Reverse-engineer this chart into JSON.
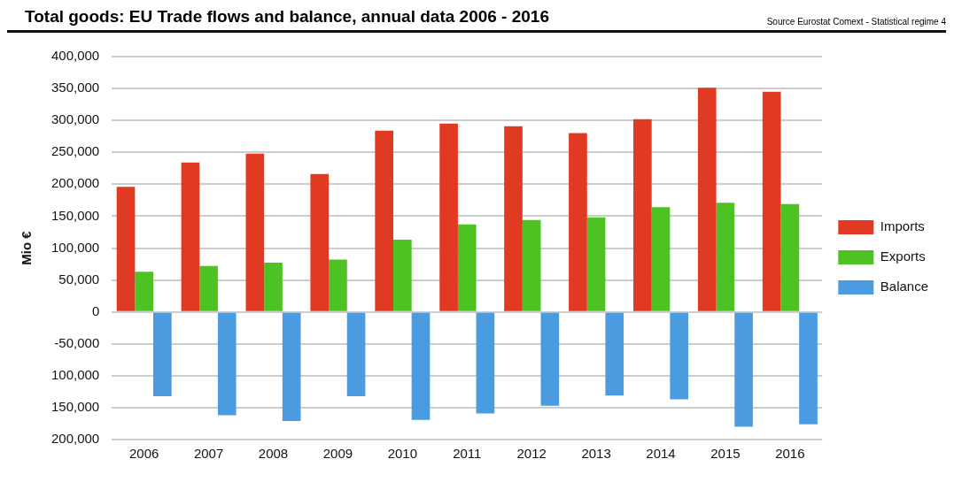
{
  "chart_data": {
    "type": "bar",
    "title": "Total goods: EU Trade flows and balance, annual data 2006 - 2016",
    "annotations": [
      "Source Eurostat Comext  - Statistical regime 4"
    ],
    "ylabel": "Mio €",
    "categories": [
      "2006",
      "2007",
      "2008",
      "2009",
      "2010",
      "2011",
      "2012",
      "2013",
      "2014",
      "2015",
      "2016"
    ],
    "series": [
      {
        "name": "Imports",
        "color": "#e03a22",
        "values": [
          196000,
          234000,
          248000,
          216000,
          284000,
          295000,
          291000,
          280000,
          302000,
          351000,
          345000
        ]
      },
      {
        "name": "Exports",
        "color": "#4cc322",
        "values": [
          63000,
          72000,
          77000,
          82000,
          113000,
          137000,
          144000,
          148000,
          164000,
          171000,
          169000
        ]
      },
      {
        "name": "Balance",
        "color": "#4a9be0",
        "values": [
          -132000,
          -162000,
          -171000,
          -132000,
          -169000,
          -159000,
          -147000,
          -131000,
          -137000,
          -180000,
          -176000
        ]
      }
    ],
    "ylim": [
      -200000,
      400000
    ],
    "yticks": [
      {
        "value": 400000,
        "label": "400,000"
      },
      {
        "value": 350000,
        "label": "350,000"
      },
      {
        "value": 300000,
        "label": "300,000"
      },
      {
        "value": 250000,
        "label": "250,000"
      },
      {
        "value": 200000,
        "label": "200,000"
      },
      {
        "value": 150000,
        "label": "150,000"
      },
      {
        "value": 100000,
        "label": "100,000"
      },
      {
        "value": 50000,
        "label": "50,000"
      },
      0,
      {
        "value": -50000,
        "label": "-50,000"
      },
      {
        "value": -100000,
        "label": "100,000"
      },
      {
        "value": -150000,
        "label": "150,000"
      },
      {
        "value": -200000,
        "label": "200,000"
      }
    ],
    "grid": "y",
    "legend": "right"
  }
}
